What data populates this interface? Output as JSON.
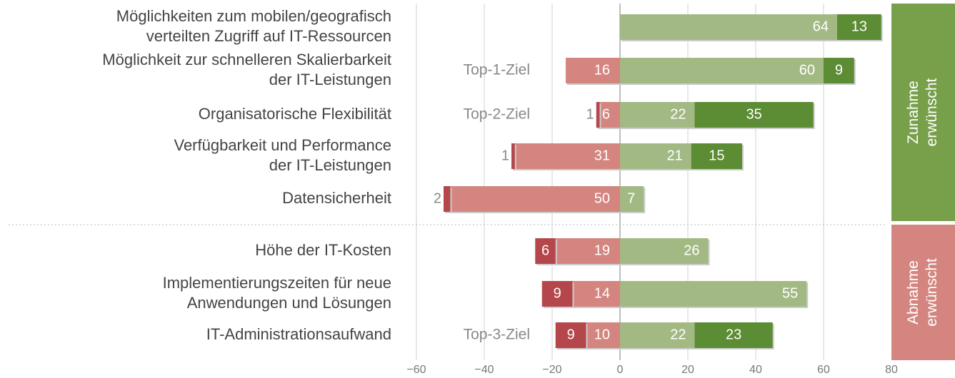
{
  "chart_data": {
    "type": "diverging-bar",
    "categories": [
      [
        "Möglichkeiten zum mobilen/geografisch",
        "verteilten Zugriff auf IT-Ressourcen"
      ],
      [
        "Möglichkeit zur schnelleren Skalierbarkeit",
        "der IT-Leistungen"
      ],
      [
        "Organisatorische Flexibilität"
      ],
      [
        "Verfügbarkeit und Performance",
        "der IT-Leistungen"
      ],
      [
        "Datensicherheit"
      ],
      [
        "Höhe der IT-Kosten"
      ],
      [
        "Implementierungszeiten für neue",
        "Anwendungen und Lösungen"
      ],
      [
        "IT-Administrationsaufwand"
      ]
    ],
    "annotations": [
      null,
      "Top-1-Ziel",
      "Top-2-Ziel",
      null,
      null,
      null,
      null,
      "Top-3-Ziel"
    ],
    "series": [
      {
        "color": "#d4857f",
        "values": [
          null,
          -16,
          -6,
          -31,
          -50,
          -19,
          -14,
          -10
        ],
        "value_labels": [
          null,
          "16",
          "6",
          "31",
          "50",
          "19",
          "14",
          "10"
        ]
      },
      {
        "color": "#b5474c",
        "values": [
          null,
          null,
          -1,
          -1,
          -2,
          -6,
          -9,
          -9
        ],
        "value_labels": [
          null,
          null,
          "1",
          "1",
          "2",
          "6",
          "9",
          "9"
        ]
      },
      {
        "color": "#a3b984",
        "values": [
          64,
          60,
          22,
          21,
          7,
          26,
          55,
          22
        ]
      },
      {
        "color": "#5c8c33",
        "values": [
          13,
          9,
          35,
          15,
          null,
          null,
          null,
          23
        ]
      }
    ],
    "groups": [
      {
        "label": [
          "Zunahme",
          "erwünscht"
        ],
        "color": "#78a04b"
      },
      {
        "label": [
          "Abnahme",
          "erwünscht"
        ],
        "color": "#d4857f"
      }
    ],
    "xlim": [
      -60,
      80
    ],
    "xticks": [
      {
        "value": -60,
        "label": "−60"
      },
      {
        "value": -40,
        "label": "−40"
      },
      {
        "value": -20,
        "label": "−20"
      },
      0,
      20,
      40,
      60,
      80
    ],
    "grid": true
  }
}
